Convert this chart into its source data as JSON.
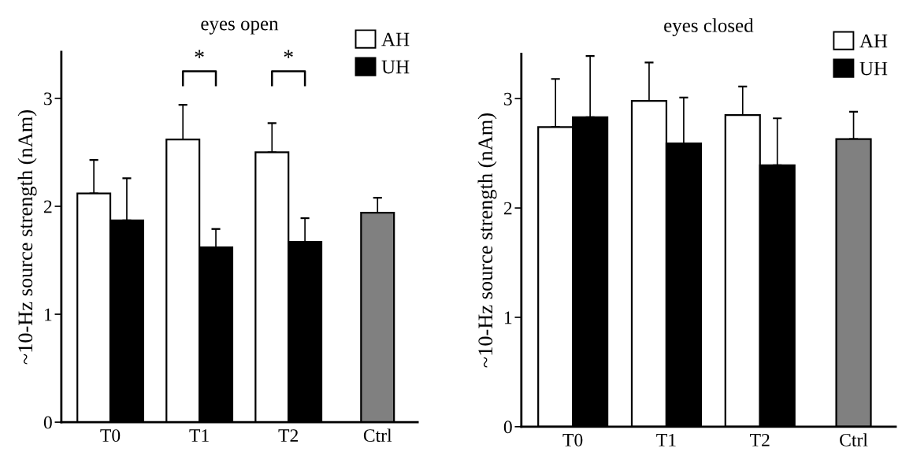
{
  "chart_data": [
    {
      "type": "bar",
      "title": "eyes open",
      "ylabel": "~10-Hz source strength (nAm)",
      "categories": [
        "T0",
        "T1",
        "T2",
        "Ctrl"
      ],
      "series": [
        {
          "name": "AH",
          "color": "#ffffff",
          "values": [
            2.12,
            2.62,
            2.5,
            null
          ],
          "errors": [
            [
              2.12,
              2.43
            ],
            [
              2.62,
              2.94
            ],
            [
              2.5,
              2.77
            ],
            null
          ]
        },
        {
          "name": "UH",
          "color": "#000000",
          "values": [
            1.87,
            1.62,
            1.67,
            null
          ],
          "errors": [
            [
              1.87,
              2.26
            ],
            [
              1.62,
              1.79
            ],
            [
              1.67,
              1.89
            ],
            null
          ]
        },
        {
          "color": "#808080",
          "values": [
            null,
            null,
            null,
            1.94
          ],
          "errors": [
            null,
            null,
            null,
            [
              1.94,
              2.08
            ]
          ]
        }
      ],
      "ylim": [
        0,
        3.43
      ],
      "yticks": [
        0,
        1,
        2,
        3
      ],
      "legend": "top right",
      "grid": false,
      "annotations": [
        "*",
        "*"
      ]
    },
    {
      "type": "bar",
      "title": "eyes closed",
      "ylabel": "~10-Hz source strength (nAm)",
      "categories": [
        "T0",
        "T1",
        "T2",
        "Ctrl"
      ],
      "series": [
        {
          "name": "AH",
          "color": "#ffffff",
          "values": [
            2.74,
            2.98,
            2.85,
            null
          ],
          "errors": [
            [
              2.74,
              3.18
            ],
            [
              2.98,
              3.33
            ],
            [
              2.85,
              3.11
            ],
            null
          ]
        },
        {
          "name": "UH",
          "color": "#000000",
          "values": [
            2.83,
            2.59,
            2.39,
            null
          ],
          "errors": [
            [
              2.83,
              3.39
            ],
            [
              2.59,
              3.01
            ],
            [
              2.39,
              2.82
            ],
            null
          ]
        },
        {
          "color": "#808080",
          "values": [
            null,
            null,
            null,
            2.63
          ],
          "errors": [
            null,
            null,
            null,
            [
              2.63,
              2.88
            ]
          ]
        }
      ],
      "ylim": [
        0,
        3.41
      ],
      "yticks": [
        0,
        1,
        2,
        3
      ],
      "legend": "top right",
      "grid": false
    }
  ]
}
